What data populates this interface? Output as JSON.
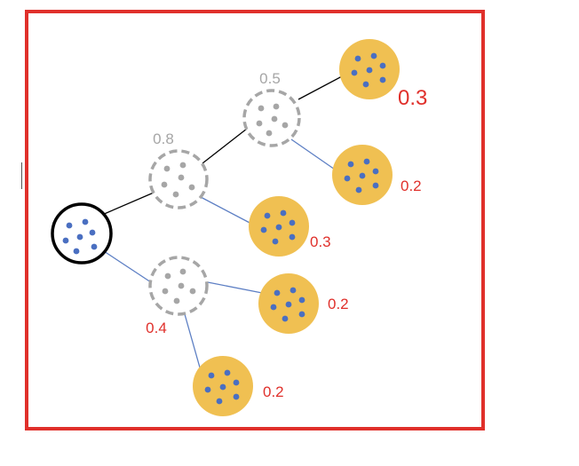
{
  "diagram": {
    "frame_color": "#e0302b",
    "root": {
      "name": "root-node"
    },
    "intermediate_nodes": [
      {
        "id": "n08",
        "label": "0.8"
      },
      {
        "id": "n05",
        "label": "0.5"
      },
      {
        "id": "n04",
        "label": "0.4"
      }
    ],
    "leaf_nodes": [
      {
        "id": "l1",
        "label": "0.3"
      },
      {
        "id": "l2",
        "label": "0.2"
      },
      {
        "id": "l3",
        "label": "0.3"
      },
      {
        "id": "l4",
        "label": "0.2"
      },
      {
        "id": "l5",
        "label": "0.2"
      }
    ],
    "colors": {
      "leaf_fill": "#f0c052",
      "dot": "#4a6fc1",
      "intermediate_border": "#a6a6a6",
      "intermediate_dot": "#a6a6a6",
      "root_border": "#000000",
      "edge_upper": "#000000",
      "edge_lower": "#5d7fc4",
      "label_gray": "#a6a6a6",
      "label_red": "#e0302b"
    }
  }
}
